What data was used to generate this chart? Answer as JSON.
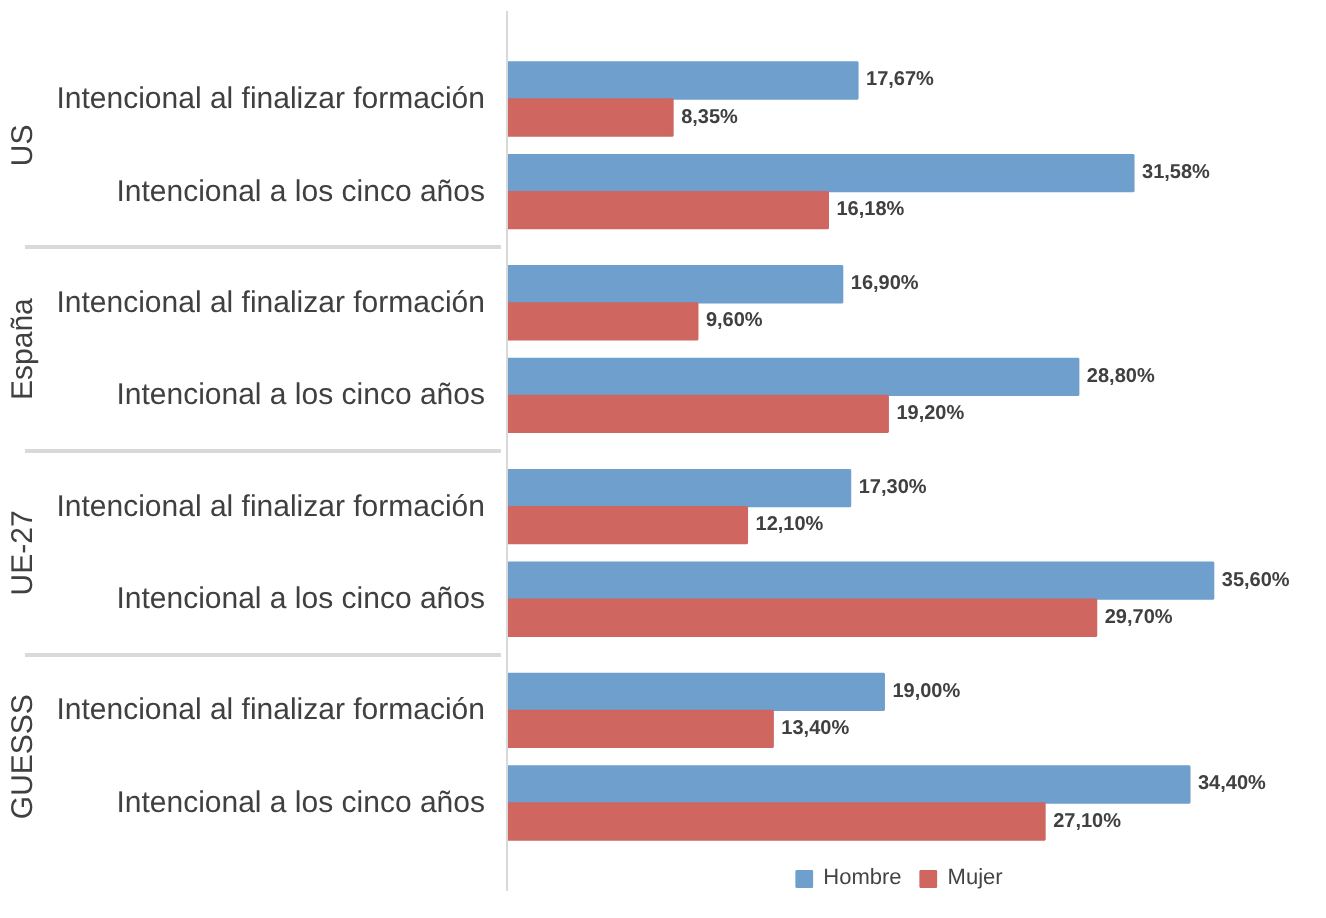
{
  "chart_data": {
    "type": "bar",
    "orientation": "horizontal",
    "legend": "bottom",
    "categories": [
      "Intencional al finalizar formación",
      "Intencional a los cinco años",
      "Intencional al finalizar formación",
      "Intencional a los cinco años",
      "Intencional al finalizar formación",
      "Intencional a los cinco años",
      "Intencional al finalizar formación",
      "Intencional a los cinco años"
    ],
    "annotations": [
      "US",
      "España",
      "UE-27",
      "GUESSS"
    ],
    "series": [
      {
        "name": "Hombre",
        "color": "#6f9fcd",
        "values": [
          17.67,
          31.58,
          16.9,
          28.8,
          17.3,
          35.6,
          19.0,
          34.4
        ],
        "value_labels": [
          "17,67%",
          "31,58%",
          "16,90%",
          "28,80%",
          "17,30%",
          "35,60%",
          "19,00%",
          "34,40%"
        ]
      },
      {
        "name": "Mujer",
        "color": "#cf6660",
        "values": [
          8.35,
          16.18,
          9.6,
          19.2,
          12.1,
          29.7,
          13.4,
          27.1
        ],
        "value_labels": [
          "8,35%",
          "16,18%",
          "9,60%",
          "19,20%",
          "12,10%",
          "29,70%",
          "13,40%",
          "27,10%"
        ]
      }
    ]
  }
}
